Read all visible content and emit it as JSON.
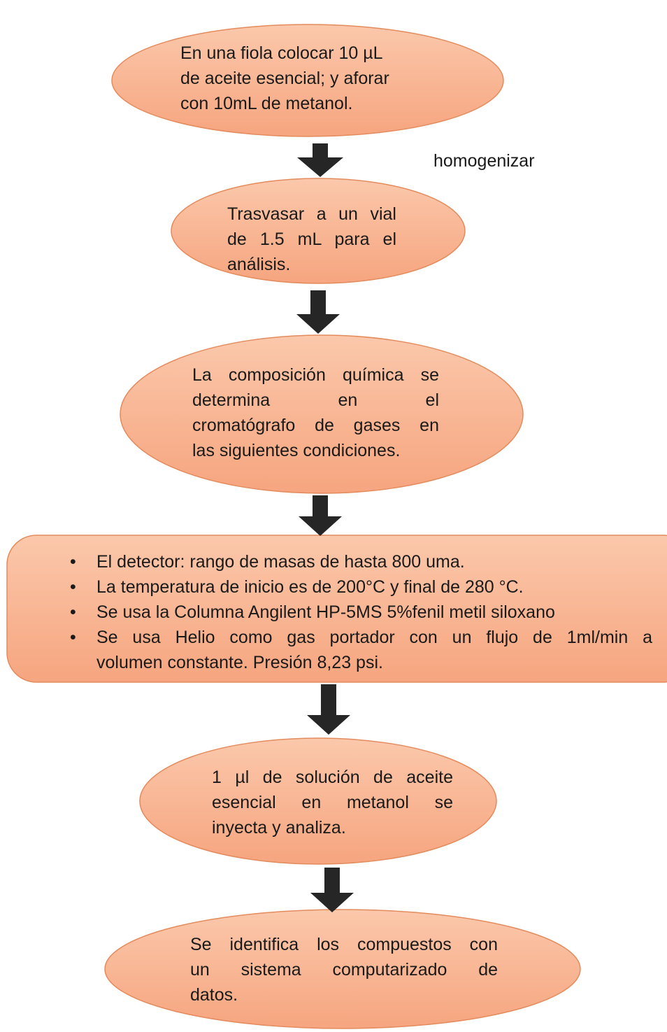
{
  "nodes": [
    {
      "shape": "ellipse",
      "align": "left",
      "lines": [
        "En una fiola colocar 10 µL",
        "de aceite esencial; y aforar",
        "con 10mL de metanol."
      ]
    },
    {
      "shape": "ellipse",
      "align": "justify",
      "lines": [
        "Trasvasar a un vial",
        "de 1.5 mL para el",
        "análisis."
      ]
    },
    {
      "shape": "ellipse",
      "align": "justify",
      "lines": [
        "La composición química se",
        "determina en el",
        "cromatógrafo de gases en",
        "las siguientes condiciones."
      ]
    },
    {
      "shape": "rounded-rectangle",
      "align": "justify",
      "items": [
        [
          "El detector: rango de masas de hasta 800 uma."
        ],
        [
          "La temperatura de inicio es de 200°C y final de 280 °C."
        ],
        [
          "Se usa la Columna Angilent HP-5MS 5%fenil metil siloxano"
        ],
        [
          "Se usa Helio como gas portador con un flujo de 1ml/min a",
          "volumen constante. Presión 8,23 psi."
        ]
      ]
    },
    {
      "shape": "ellipse",
      "align": "justify",
      "lines": [
        "1 µl de solución de aceite",
        "esencial en metanol se",
        "inyecta y analiza."
      ]
    },
    {
      "shape": "ellipse",
      "align": "justify",
      "lines": [
        "Se identifica los compuestos con",
        "un sistema computarizado de",
        "datos."
      ]
    }
  ],
  "edges": [
    {
      "label": "homogenizar"
    },
    {},
    {},
    {},
    {}
  ]
}
